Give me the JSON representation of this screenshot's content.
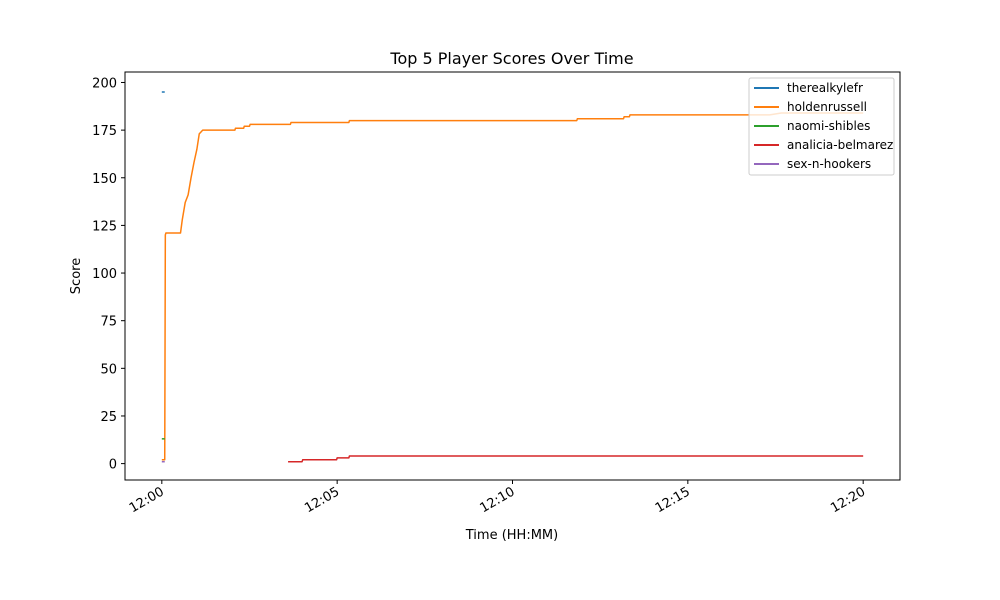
{
  "chart_data": {
    "type": "line",
    "title": "Top 5 Player Scores Over Time",
    "xlabel": "Time (HH:MM)",
    "ylabel": "Score",
    "xlim": [
      "11:58:57",
      "12:21:03"
    ],
    "ylim": [
      -8.6,
      205.5
    ],
    "x_ticks": [
      "12:00",
      "12:05",
      "12:10",
      "12:15",
      "12:20"
    ],
    "y_ticks": [
      0,
      25,
      50,
      75,
      100,
      125,
      150,
      175,
      200
    ],
    "legend_position": "top-right",
    "grid": false,
    "series": [
      {
        "name": "therealkylefr",
        "color": "#1f77b4",
        "points": [
          [
            "12:00:00",
            195
          ],
          [
            "12:00:05",
            195
          ]
        ]
      },
      {
        "name": "holdenrussell",
        "color": "#ff7f0e",
        "points": [
          [
            "12:00:00",
            2
          ],
          [
            "12:00:05",
            2
          ],
          [
            "12:00:06",
            120
          ],
          [
            "12:00:07",
            121
          ],
          [
            "12:00:32",
            121
          ],
          [
            "12:00:35",
            128
          ],
          [
            "12:00:40",
            137
          ],
          [
            "12:00:45",
            141
          ],
          [
            "12:00:50",
            150
          ],
          [
            "12:00:55",
            158
          ],
          [
            "12:01:00",
            165
          ],
          [
            "12:01:04",
            173
          ],
          [
            "12:01:10",
            175
          ],
          [
            "12:02:05",
            175
          ],
          [
            "12:02:06",
            176
          ],
          [
            "12:02:20",
            176
          ],
          [
            "12:02:21",
            177
          ],
          [
            "12:02:30",
            177
          ],
          [
            "12:02:31",
            178
          ],
          [
            "12:03:40",
            178
          ],
          [
            "12:03:41",
            179
          ],
          [
            "12:05:20",
            179
          ],
          [
            "12:05:21",
            180
          ],
          [
            "12:11:50",
            180
          ],
          [
            "12:11:51",
            181
          ],
          [
            "12:13:10",
            181
          ],
          [
            "12:13:11",
            182
          ],
          [
            "12:13:20",
            182
          ],
          [
            "12:13:21",
            183
          ],
          [
            "12:17:20",
            183
          ],
          [
            "12:17:40",
            184
          ],
          [
            "12:20:00",
            184
          ]
        ]
      },
      {
        "name": "naomi-shibles",
        "color": "#2ca02c",
        "points": [
          [
            "12:00:00",
            13
          ],
          [
            "12:00:05",
            13
          ]
        ]
      },
      {
        "name": "analicia-belmarez",
        "color": "#d62728",
        "points": [
          [
            "12:03:36",
            1
          ],
          [
            "12:04:00",
            1
          ],
          [
            "12:04:01",
            2
          ],
          [
            "12:04:59",
            2
          ],
          [
            "12:05:00",
            3
          ],
          [
            "12:05:20",
            3
          ],
          [
            "12:05:21",
            4
          ],
          [
            "12:20:00",
            4
          ]
        ]
      },
      {
        "name": "sex-n-hookers",
        "color": "#9467bd",
        "points": [
          [
            "12:00:00",
            1
          ],
          [
            "12:00:05",
            1
          ]
        ]
      }
    ]
  }
}
